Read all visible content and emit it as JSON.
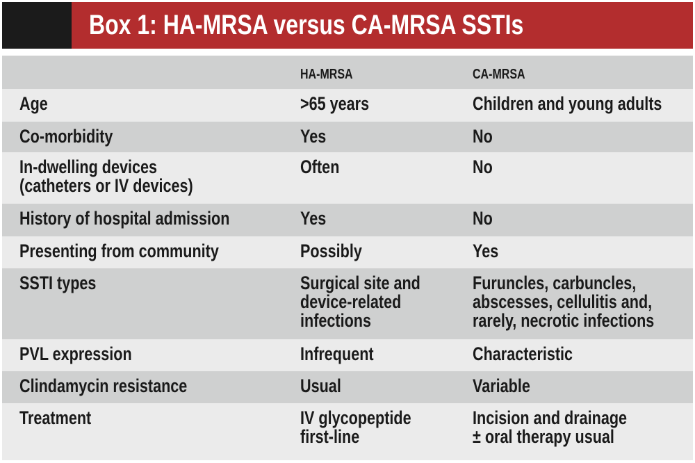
{
  "header": {
    "title": "Box 1: HA-MRSA versus CA-MRSA SSTIs"
  },
  "table": {
    "columns": [
      "HA-MRSA",
      "CA-MRSA"
    ],
    "rows": [
      [
        [
          "Age"
        ],
        [
          ">65 years"
        ],
        [
          "Children and young adults"
        ]
      ],
      [
        [
          "Co-morbidity"
        ],
        [
          "Yes"
        ],
        [
          "No"
        ]
      ],
      [
        [
          "In-dwelling devices",
          "(catheters or IV devices)"
        ],
        [
          "Often"
        ],
        [
          "No"
        ]
      ],
      [
        [
          "History of hospital admission"
        ],
        [
          "Yes"
        ],
        [
          "No"
        ]
      ],
      [
        [
          "Presenting from community"
        ],
        [
          "Possibly"
        ],
        [
          "Yes"
        ]
      ],
      [
        [
          "SSTI types"
        ],
        [
          "Surgical site and",
          "device-related",
          "infections"
        ],
        [
          "Furuncles, carbuncles,",
          "abscesses, cellulitis and,",
          "rarely, necrotic infections"
        ]
      ],
      [
        [
          "PVL expression"
        ],
        [
          "Infrequent"
        ],
        [
          "Characteristic"
        ]
      ],
      [
        [
          "Clindamycin resistance"
        ],
        [
          "Usual"
        ],
        [
          "Variable"
        ]
      ],
      [
        [
          "Treatment"
        ],
        [
          "IV glycopeptide",
          "first-line"
        ],
        [
          "Incision and drainage",
          "± oral therapy usual"
        ]
      ]
    ]
  }
}
